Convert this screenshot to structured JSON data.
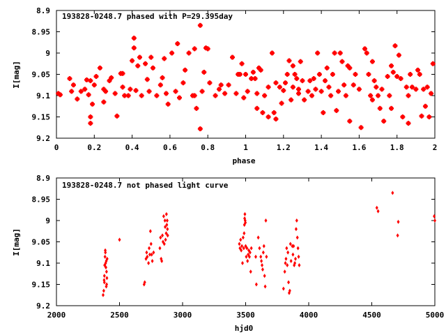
{
  "chart_data": [
    {
      "type": "scatter",
      "title": "193828-0248.7 phased with P=29.395day",
      "xlabel": "phase",
      "ylabel": "I[mag]",
      "xlim": [
        0,
        2
      ],
      "ylim": [
        9.2,
        8.9
      ],
      "y_inverted": true,
      "xticks": [
        0,
        0.2,
        0.4,
        0.6,
        0.8,
        1,
        1.2,
        1.4,
        1.6,
        1.8,
        2
      ],
      "xtick_labels": [
        "0",
        "0.2",
        "0.4",
        "0.6",
        "0.8",
        "1",
        "1.2",
        "1.4",
        "1.6",
        "1.8",
        "2"
      ],
      "yticks": [
        8.9,
        8.95,
        9,
        9.05,
        9.1,
        9.15,
        9.2
      ],
      "ytick_labels": [
        "8.9",
        "8.95",
        "9",
        "9.05",
        "9.1",
        "9.15",
        "9.2"
      ],
      "grid": false,
      "marker_color": "#ff0000",
      "points": [
        [
          0.01,
          9.095
        ],
        [
          0.02,
          9.098
        ],
        [
          0.07,
          9.06
        ],
        [
          0.08,
          9.09
        ],
        [
          0.09,
          9.075
        ],
        [
          0.11,
          9.108
        ],
        [
          0.13,
          9.09
        ],
        [
          0.15,
          9.085
        ],
        [
          0.16,
          9.063
        ],
        [
          0.17,
          9.098
        ],
        [
          0.18,
          9.065
        ],
        [
          0.18,
          9.15
        ],
        [
          0.18,
          9.165
        ],
        [
          0.19,
          9.12
        ],
        [
          0.2,
          9.075
        ],
        [
          0.21,
          9.055
        ],
        [
          0.23,
          9.035
        ],
        [
          0.25,
          9.085
        ],
        [
          0.25,
          9.115
        ],
        [
          0.26,
          9.09
        ],
        [
          0.28,
          9.065
        ],
        [
          0.29,
          9.058
        ],
        [
          0.31,
          9.095
        ],
        [
          0.32,
          9.148
        ],
        [
          0.34,
          9.048
        ],
        [
          0.35,
          9.048
        ],
        [
          0.35,
          9.08
        ],
        [
          0.36,
          9.1
        ],
        [
          0.38,
          9.1
        ],
        [
          0.39,
          9.085
        ],
        [
          0.4,
          9.018
        ],
        [
          0.41,
          8.965
        ],
        [
          0.41,
          8.988
        ],
        [
          0.42,
          9.088
        ],
        [
          0.43,
          9.03
        ],
        [
          0.44,
          9.01
        ],
        [
          0.45,
          9.1
        ],
        [
          0.47,
          9.025
        ],
        [
          0.48,
          9.062
        ],
        [
          0.49,
          9.09
        ],
        [
          0.5,
          9.01
        ],
        [
          0.51,
          9.035
        ],
        [
          0.53,
          9.1
        ],
        [
          0.55,
          9.075
        ],
        [
          0.56,
          9.058
        ],
        [
          0.57,
          9.013
        ],
        [
          0.58,
          9.095
        ],
        [
          0.59,
          9.12
        ],
        [
          0.61,
          9.0
        ],
        [
          0.63,
          9.09
        ],
        [
          0.64,
          8.978
        ],
        [
          0.65,
          9.105
        ],
        [
          0.67,
          9.07
        ],
        [
          0.68,
          9.04
        ],
        [
          0.7,
          9.0
        ],
        [
          0.72,
          9.1
        ],
        [
          0.73,
          8.99
        ],
        [
          0.73,
          9.1
        ],
        [
          0.74,
          9.13
        ],
        [
          0.76,
          8.935
        ],
        [
          0.76,
          9.178
        ],
        [
          0.77,
          9.09
        ],
        [
          0.78,
          9.045
        ],
        [
          0.79,
          8.988
        ],
        [
          0.8,
          8.99
        ],
        [
          0.81,
          9.07
        ],
        [
          0.84,
          9.1
        ],
        [
          0.86,
          9.085
        ],
        [
          0.87,
          9.075
        ],
        [
          0.89,
          9.095
        ],
        [
          0.91,
          9.075
        ],
        [
          0.93,
          9.01
        ],
        [
          0.95,
          9.095
        ],
        [
          0.96,
          9.05
        ],
        [
          0.97,
          9.05
        ],
        [
          0.98,
          9.025
        ],
        [
          0.99,
          9.105
        ],
        [
          1.0,
          9.05
        ],
        [
          1.01,
          9.09
        ],
        [
          1.03,
          9.06
        ],
        [
          1.04,
          9.045
        ],
        [
          1.05,
          9.06
        ],
        [
          1.06,
          9.095
        ],
        [
          1.06,
          9.13
        ],
        [
          1.07,
          9.035
        ],
        [
          1.08,
          9.04
        ],
        [
          1.09,
          9.14
        ],
        [
          1.1,
          9.1
        ],
        [
          1.12,
          9.08
        ],
        [
          1.12,
          9.15
        ],
        [
          1.14,
          9.0
        ],
        [
          1.15,
          9.14
        ],
        [
          1.16,
          9.07
        ],
        [
          1.16,
          9.155
        ],
        [
          1.18,
          9.08
        ],
        [
          1.19,
          9.118
        ],
        [
          1.2,
          9.088
        ],
        [
          1.21,
          9.07
        ],
        [
          1.22,
          9.05
        ],
        [
          1.23,
          9.018
        ],
        [
          1.24,
          9.11
        ],
        [
          1.25,
          9.03
        ],
        [
          1.25,
          9.08
        ],
        [
          1.26,
          9.05
        ],
        [
          1.27,
          9.06
        ],
        [
          1.28,
          9.085
        ],
        [
          1.28,
          9.095
        ],
        [
          1.29,
          9.02
        ],
        [
          1.3,
          9.065
        ],
        [
          1.31,
          9.11
        ],
        [
          1.33,
          9.09
        ],
        [
          1.34,
          9.065
        ],
        [
          1.35,
          9.1
        ],
        [
          1.36,
          9.06
        ],
        [
          1.37,
          9.085
        ],
        [
          1.38,
          9.0
        ],
        [
          1.39,
          9.05
        ],
        [
          1.4,
          9.09
        ],
        [
          1.41,
          9.14
        ],
        [
          1.42,
          9.065
        ],
        [
          1.43,
          9.035
        ],
        [
          1.44,
          9.08
        ],
        [
          1.45,
          9.1
        ],
        [
          1.46,
          9.05
        ],
        [
          1.47,
          9.0
        ],
        [
          1.48,
          9.135
        ],
        [
          1.49,
          9.09
        ],
        [
          1.5,
          9.0
        ],
        [
          1.51,
          9.02
        ],
        [
          1.52,
          9.075
        ],
        [
          1.53,
          9.1
        ],
        [
          1.54,
          9.03
        ],
        [
          1.55,
          9.035
        ],
        [
          1.55,
          9.16
        ],
        [
          1.57,
          9.075
        ],
        [
          1.58,
          9.05
        ],
        [
          1.6,
          9.085
        ],
        [
          1.61,
          9.175
        ],
        [
          1.63,
          8.99
        ],
        [
          1.64,
          9.0
        ],
        [
          1.65,
          9.05
        ],
        [
          1.66,
          9.1
        ],
        [
          1.67,
          9.02
        ],
        [
          1.67,
          9.11
        ],
        [
          1.68,
          9.065
        ],
        [
          1.69,
          9.08
        ],
        [
          1.7,
          9.1
        ],
        [
          1.71,
          9.13
        ],
        [
          1.72,
          9.085
        ],
        [
          1.73,
          9.16
        ],
        [
          1.75,
          9.055
        ],
        [
          1.76,
          9.1
        ],
        [
          1.77,
          9.03
        ],
        [
          1.77,
          9.13
        ],
        [
          1.78,
          9.045
        ],
        [
          1.79,
          8.983
        ],
        [
          1.8,
          9.055
        ],
        [
          1.81,
          9.005
        ],
        [
          1.82,
          9.06
        ],
        [
          1.83,
          9.15
        ],
        [
          1.85,
          9.08
        ],
        [
          1.86,
          9.1
        ],
        [
          1.86,
          9.165
        ],
        [
          1.87,
          9.05
        ],
        [
          1.88,
          9.08
        ],
        [
          1.9,
          9.085
        ],
        [
          1.91,
          9.04
        ],
        [
          1.92,
          9.05
        ],
        [
          1.93,
          9.148
        ],
        [
          1.94,
          9.085
        ],
        [
          1.95,
          9.125
        ],
        [
          1.96,
          9.08
        ],
        [
          1.97,
          9.15
        ],
        [
          1.98,
          9.095
        ],
        [
          1.99,
          9.025
        ]
      ]
    },
    {
      "type": "scatter",
      "title": "193828-0248.7 not phased light curve",
      "xlabel": "hjd0",
      "ylabel": "I[mag]",
      "xlim": [
        2000,
        5000
      ],
      "ylim": [
        9.2,
        8.9
      ],
      "y_inverted": true,
      "xticks": [
        2000,
        2500,
        3000,
        3500,
        4000,
        4500,
        5000
      ],
      "xtick_labels": [
        "2000",
        "2500",
        "3000",
        "3500",
        "4000",
        "4500",
        "5000"
      ],
      "yticks": [
        8.9,
        8.95,
        9,
        9.05,
        9.1,
        9.15,
        9.2
      ],
      "ytick_labels": [
        "8.9",
        "8.95",
        "9",
        "9.05",
        "9.1",
        "9.15",
        "9.2"
      ],
      "grid": false,
      "marker_color": "#ff0000",
      "points": [
        [
          2370,
          9.175
        ],
        [
          2375,
          9.165
        ],
        [
          2378,
          9.14
        ],
        [
          2380,
          9.13
        ],
        [
          2382,
          9.105
        ],
        [
          2385,
          9.085
        ],
        [
          2387,
          9.07
        ],
        [
          2388,
          9.075
        ],
        [
          2390,
          9.1
        ],
        [
          2392,
          9.11
        ],
        [
          2395,
          9.095
        ],
        [
          2397,
          9.12
        ],
        [
          2398,
          9.15
        ],
        [
          2400,
          9.135
        ],
        [
          2402,
          9.09
        ],
        [
          2395,
          9.155
        ],
        [
          2380,
          9.145
        ],
        [
          2500,
          9.045
        ],
        [
          2695,
          9.15
        ],
        [
          2700,
          9.145
        ],
        [
          2710,
          9.09
        ],
        [
          2715,
          9.075
        ],
        [
          2720,
          9.085
        ],
        [
          2730,
          9.1
        ],
        [
          2735,
          9.065
        ],
        [
          2740,
          9.08
        ],
        [
          2745,
          9.025
        ],
        [
          2750,
          9.055
        ],
        [
          2755,
          9.08
        ],
        [
          2760,
          9.095
        ],
        [
          2770,
          9.075
        ],
        [
          2820,
          9.065
        ],
        [
          2825,
          9.04
        ],
        [
          2830,
          9.09
        ],
        [
          2835,
          9.095
        ],
        [
          2840,
          9.035
        ],
        [
          2845,
          9.05
        ],
        [
          2850,
          8.99
        ],
        [
          2855,
          9.055
        ],
        [
          2860,
          9.0
        ],
        [
          2862,
          9.015
        ],
        [
          2865,
          9.045
        ],
        [
          2870,
          9.03
        ],
        [
          2872,
          8.985
        ],
        [
          2875,
          9.01
        ],
        [
          2878,
          9.0
        ],
        [
          2880,
          9.02
        ],
        [
          2882,
          9.035
        ],
        [
          3450,
          9.055
        ],
        [
          3455,
          9.065
        ],
        [
          3460,
          9.045
        ],
        [
          3465,
          9.07
        ],
        [
          3470,
          9.06
        ],
        [
          3475,
          9.1
        ],
        [
          3480,
          9.04
        ],
        [
          3485,
          9.065
        ],
        [
          3488,
          9.03
        ],
        [
          3490,
          9.01
        ],
        [
          3492,
          8.995
        ],
        [
          3494,
          8.985
        ],
        [
          3496,
          9.0
        ],
        [
          3498,
          9.005
        ],
        [
          3500,
          9.06
        ],
        [
          3505,
          9.085
        ],
        [
          3510,
          9.065
        ],
        [
          3515,
          9.095
        ],
        [
          3520,
          9.08
        ],
        [
          3525,
          9.07
        ],
        [
          3530,
          9.085
        ],
        [
          3535,
          9.075
        ],
        [
          3540,
          9.12
        ],
        [
          3545,
          9.065
        ],
        [
          3580,
          9.085
        ],
        [
          3585,
          9.15
        ],
        [
          3600,
          9.04
        ],
        [
          3610,
          9.065
        ],
        [
          3620,
          9.085
        ],
        [
          3625,
          9.095
        ],
        [
          3630,
          9.105
        ],
        [
          3635,
          9.115
        ],
        [
          3640,
          9.075
        ],
        [
          3645,
          9.06
        ],
        [
          3650,
          9.13
        ],
        [
          3655,
          9.155
        ],
        [
          3660,
          9.0
        ],
        [
          3665,
          9.085
        ],
        [
          3800,
          9.16
        ],
        [
          3810,
          9.12
        ],
        [
          3815,
          9.1
        ],
        [
          3820,
          9.09
        ],
        [
          3825,
          9.065
        ],
        [
          3830,
          9.105
        ],
        [
          3835,
          9.075
        ],
        [
          3840,
          9.145
        ],
        [
          3845,
          9.17
        ],
        [
          3850,
          9.165
        ],
        [
          3855,
          9.055
        ],
        [
          3860,
          9.095
        ],
        [
          3870,
          9.06
        ],
        [
          3875,
          9.08
        ],
        [
          3880,
          9.06
        ],
        [
          3885,
          9.105
        ],
        [
          3890,
          9.1
        ],
        [
          3895,
          9.09
        ],
        [
          3900,
          9.02
        ],
        [
          3905,
          9.0
        ],
        [
          3910,
          9.04
        ],
        [
          3915,
          9.065
        ],
        [
          3920,
          9.085
        ],
        [
          3925,
          9.105
        ],
        [
          4540,
          8.97
        ],
        [
          4550,
          8.978
        ],
        [
          4665,
          8.935
        ],
        [
          4705,
          9.035
        ],
        [
          4710,
          9.003
        ],
        [
          4995,
          8.99
        ],
        [
          5000,
          9.0
        ]
      ]
    }
  ]
}
